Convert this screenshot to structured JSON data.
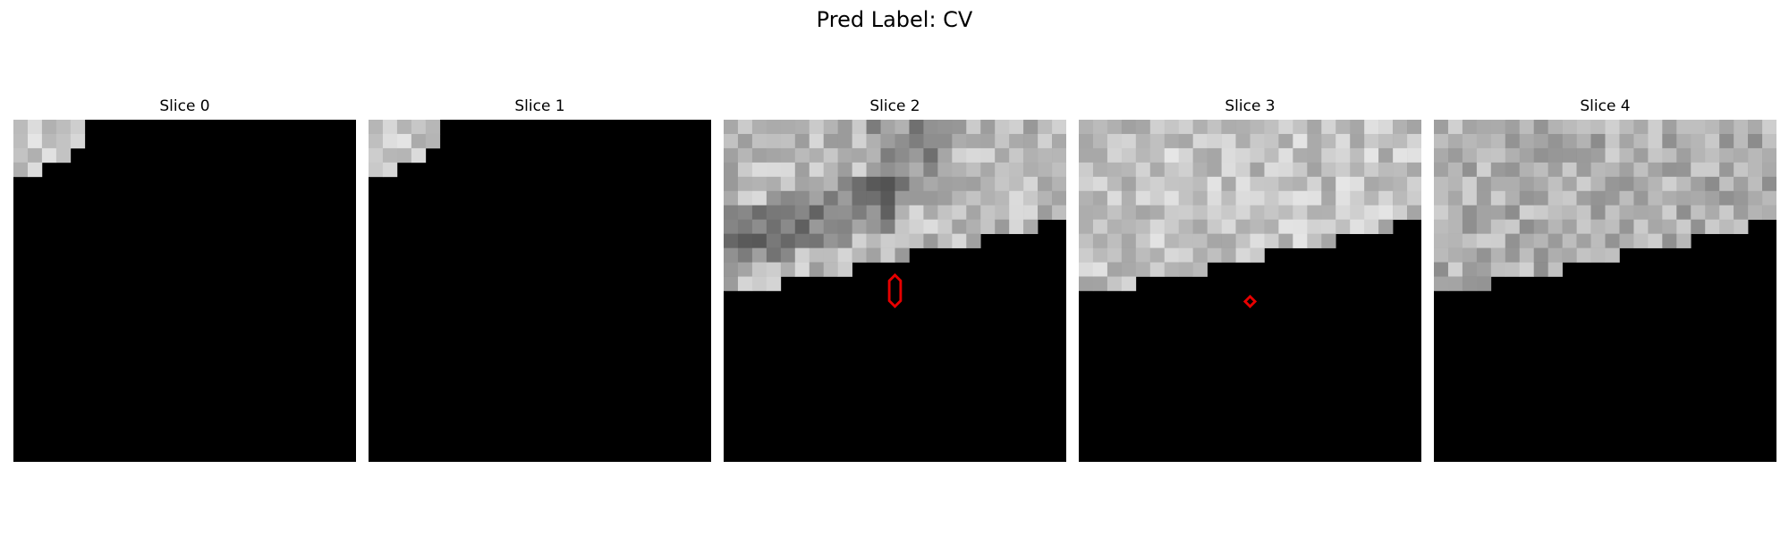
{
  "figure": {
    "title": "Pred Label: CV"
  },
  "panels": [
    {
      "title": "Slice 0",
      "region": "tiny_corner",
      "seed": 11,
      "base": 205,
      "dark_band": false,
      "marker": "none"
    },
    {
      "title": "Slice 1",
      "region": "tiny_corner",
      "seed": 23,
      "base": 200,
      "dark_band": false,
      "marker": "none"
    },
    {
      "title": "Slice 2",
      "region": "large_top",
      "seed": 37,
      "base": 185,
      "dark_band": true,
      "marker": "tall"
    },
    {
      "title": "Slice 3",
      "region": "large_top",
      "seed": 53,
      "base": 195,
      "dark_band": false,
      "marker": "small"
    },
    {
      "title": "Slice 4",
      "region": "large_top",
      "seed": 71,
      "base": 175,
      "dark_band": false,
      "marker": "none"
    }
  ],
  "colors": {
    "mask": "#000000",
    "marker": "#e60000"
  }
}
